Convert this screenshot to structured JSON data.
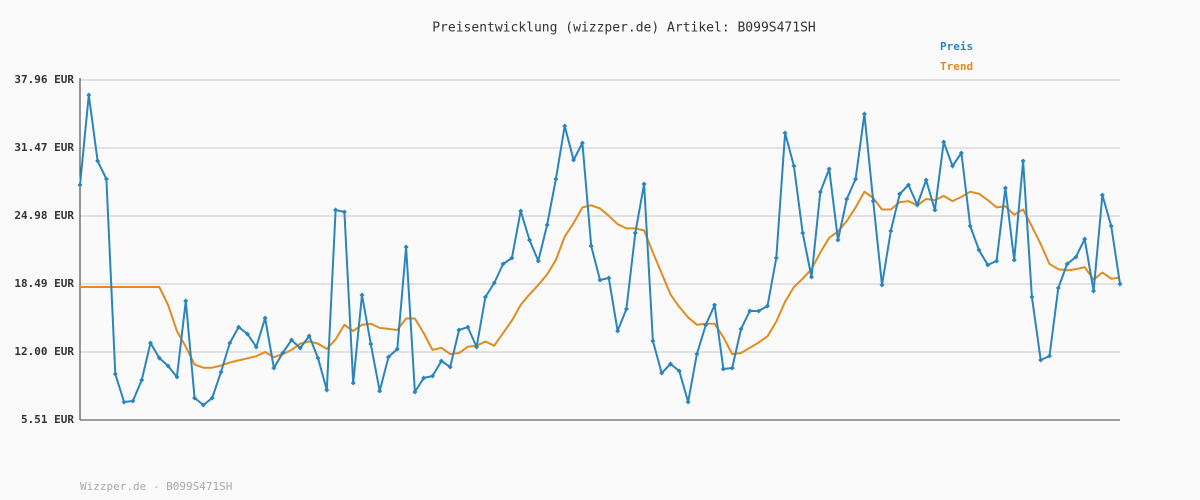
{
  "chart_data": {
    "type": "line",
    "title": "Preisentwicklung (wizzper.de) Artikel: B099S471SH",
    "footer": "Wizzper.de - B099S471SH",
    "legend": "top-right",
    "grid": true,
    "ylim": [
      5.51,
      37.96
    ],
    "yticks": [
      {
        "value": 5.51,
        "label": "5.51 EUR"
      },
      {
        "value": 12.0,
        "label": "12.00 EUR"
      },
      {
        "value": 18.49,
        "label": "18.49 EUR"
      },
      {
        "value": 24.98,
        "label": "24.98 EUR"
      },
      {
        "value": 31.47,
        "label": "31.47 EUR"
      },
      {
        "value": 37.96,
        "label": "37.96 EUR"
      }
    ],
    "categories": [
      null,
      null,
      null,
      null,
      null,
      null,
      null,
      null,
      null,
      null,
      null,
      null,
      null,
      null,
      null,
      null,
      null,
      null,
      null,
      null,
      null,
      null,
      null,
      null,
      null,
      null,
      null,
      null,
      null,
      null,
      null,
      null,
      null,
      null,
      null,
      null,
      null,
      null,
      null,
      null,
      null,
      null,
      null,
      null,
      null,
      null,
      null,
      null,
      null,
      null,
      null,
      null,
      null,
      null,
      null,
      null,
      null,
      null,
      null,
      null,
      null,
      null,
      null,
      null,
      null,
      null,
      null,
      null,
      null,
      null,
      null,
      null,
      null,
      null,
      null,
      null,
      null,
      null,
      null,
      null,
      null,
      null,
      null,
      null,
      null,
      null,
      null,
      null,
      null,
      null,
      null,
      null,
      null,
      null,
      null,
      null,
      null,
      null,
      null,
      null,
      null,
      null,
      null,
      null,
      null,
      null,
      null,
      null,
      null,
      null,
      null,
      null,
      null,
      null,
      null,
      null,
      null,
      null,
      null
    ],
    "series": [
      {
        "name": "Preis",
        "color": "#2a85bd",
        "markers": true,
        "values": [
          27.94,
          36.53,
          30.23,
          28.51,
          9.9,
          7.23,
          7.32,
          9.32,
          12.86,
          11.43,
          10.66,
          9.61,
          16.87,
          7.61,
          6.94,
          7.61,
          10.09,
          12.86,
          14.38,
          13.72,
          12.48,
          15.24,
          10.47,
          11.9,
          13.14,
          12.38,
          13.53,
          11.43,
          8.37,
          25.55,
          25.36,
          9.04,
          17.44,
          12.76,
          8.28,
          11.52,
          12.29,
          22.02,
          8.18,
          9.52,
          9.71,
          11.14,
          10.57,
          14.1,
          14.38,
          12.48,
          17.25,
          18.59,
          20.4,
          20.97,
          25.46,
          22.69,
          20.69,
          24.12,
          28.51,
          33.57,
          30.32,
          31.95,
          22.12,
          18.87,
          19.06,
          14.0,
          16.1,
          23.36,
          28.03,
          13.05,
          9.99,
          10.85,
          10.19,
          7.23,
          11.81,
          14.58,
          16.48,
          10.38,
          10.47,
          14.19,
          15.91,
          15.91,
          16.39,
          20.97,
          32.9,
          29.75,
          23.36,
          19.16,
          27.27,
          29.47,
          22.69,
          26.6,
          28.51,
          34.71,
          26.41,
          18.39,
          23.55,
          27.08,
          27.94,
          26.03,
          28.42,
          25.55,
          32.04,
          29.75,
          30.99,
          24.03,
          21.73,
          20.3,
          20.69,
          27.65,
          20.78,
          30.23,
          17.25,
          11.24,
          11.62,
          18.11,
          20.4,
          21.07,
          22.78,
          17.82,
          26.98,
          24.03,
          18.49
        ]
      },
      {
        "name": "Trend",
        "color": "#e08c22",
        "markers": false,
        "values": [
          18.2,
          18.2,
          18.2,
          18.2,
          18.2,
          18.2,
          18.2,
          18.2,
          18.2,
          18.2,
          16.5,
          14.0,
          12.5,
          10.8,
          10.5,
          10.5,
          10.7,
          11.0,
          11.2,
          11.4,
          11.6,
          12.0,
          11.5,
          11.8,
          12.2,
          12.8,
          13.0,
          12.8,
          12.3,
          13.2,
          14.6,
          14.0,
          14.6,
          14.7,
          14.3,
          14.2,
          14.1,
          15.2,
          15.2,
          13.8,
          12.2,
          12.4,
          11.8,
          11.9,
          12.5,
          12.6,
          13.0,
          12.6,
          13.8,
          15.0,
          16.5,
          17.5,
          18.4,
          19.4,
          20.8,
          23.0,
          24.3,
          25.8,
          26.0,
          25.7,
          25.0,
          24.2,
          23.8,
          23.8,
          23.6,
          21.5,
          19.5,
          17.5,
          16.3,
          15.3,
          14.6,
          14.7,
          14.7,
          13.4,
          11.8,
          11.9,
          12.4,
          12.9,
          13.5,
          14.9,
          16.8,
          18.2,
          19.0,
          19.9,
          21.5,
          22.9,
          23.5,
          24.5,
          25.8,
          27.3,
          26.7,
          25.6,
          25.6,
          26.3,
          26.4,
          26.0,
          26.6,
          26.5,
          26.9,
          26.4,
          26.8,
          27.3,
          27.1,
          26.5,
          25.8,
          25.9,
          25.1,
          25.6,
          24.0,
          22.3,
          20.4,
          19.9,
          19.8,
          19.9,
          20.1,
          18.9,
          19.6,
          19.0,
          19.1
        ]
      }
    ]
  }
}
